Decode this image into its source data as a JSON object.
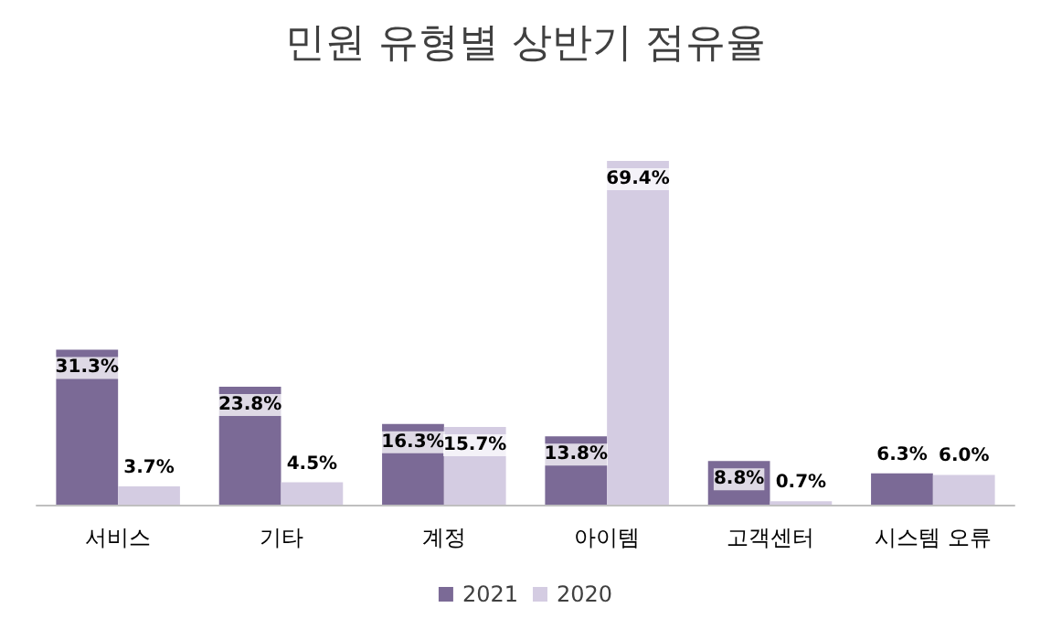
{
  "chart_data": {
    "type": "bar",
    "title": "민원 유형별 상반기 점유율",
    "categories": [
      "서비스",
      "기타",
      "계정",
      "아이템",
      "고객센터",
      "시스템 오류"
    ],
    "series": [
      {
        "name": "2021",
        "color": "#7b6a96",
        "values": [
          31.3,
          23.8,
          16.3,
          13.8,
          8.8,
          6.3
        ],
        "value_labels": [
          "31.3%",
          "23.8%",
          "16.3%",
          "13.8%",
          "8.8%",
          "6.3%"
        ]
      },
      {
        "name": "2020",
        "color": "#d4cce2",
        "values": [
          3.7,
          4.5,
          15.7,
          69.4,
          0.7,
          6.0
        ],
        "value_labels": [
          "3.7%",
          "4.5%",
          "15.7%",
          "69.4%",
          "0.7%",
          "6.0%"
        ]
      }
    ],
    "legend": "bottom"
  }
}
